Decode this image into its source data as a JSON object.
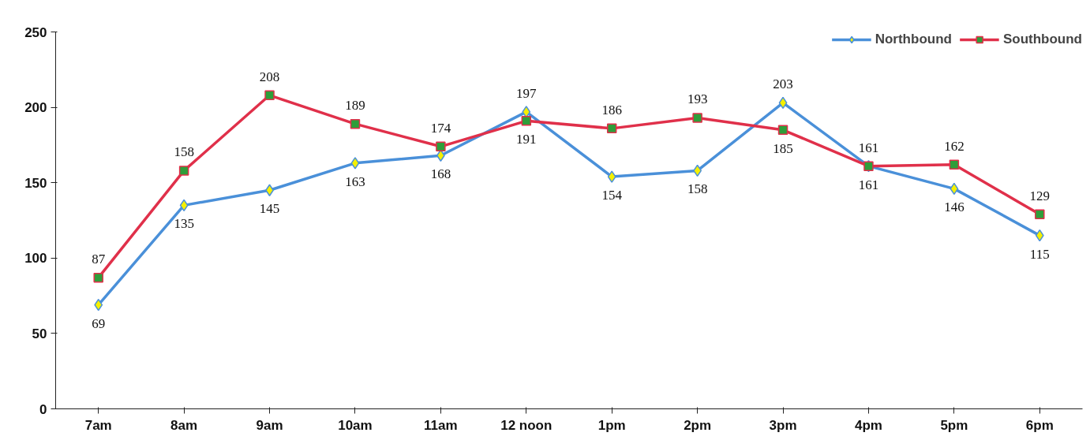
{
  "chart_data": {
    "type": "line",
    "categories": [
      "7am",
      "8am",
      "9am",
      "10am",
      "11am",
      "12 noon",
      "1pm",
      "2pm",
      "3pm",
      "4pm",
      "5pm",
      "6pm"
    ],
    "series": [
      {
        "name": "Northbound",
        "color": "#4a90d9",
        "marker": "diamond",
        "colors": [
          "#f5f000",
          "#f5f000",
          "#f5f000",
          "#f5f000",
          "#f5f000",
          "#f5f000",
          "#f5f000",
          "#f5f000",
          "#f5f000",
          "#f5f000",
          "#f5f000",
          "#f5f000"
        ],
        "values": [
          69,
          135,
          145,
          163,
          168,
          197,
          154,
          158,
          203,
          161,
          146,
          115
        ]
      },
      {
        "name": "Southbound",
        "color": "#e0304a",
        "marker": "square",
        "colors": [
          "#2e9e3a",
          "#2e9e3a",
          "#2e9e3a",
          "#2e9e3a",
          "#2e9e3a",
          "#2e9e3a",
          "#2e9e3a",
          "#2e9e3a",
          "#2e9e3a",
          "#2e9e3a",
          "#2e9e3a",
          "#2e9e3a"
        ],
        "values": [
          87,
          158,
          208,
          189,
          174,
          191,
          186,
          193,
          185,
          161,
          162,
          129
        ]
      }
    ],
    "ylim": [
      0,
      250
    ],
    "yticks": [
      0,
      50,
      100,
      150,
      200,
      250
    ],
    "grid": false,
    "legend": "top right",
    "data_labels": true,
    "line_style": "solid"
  }
}
